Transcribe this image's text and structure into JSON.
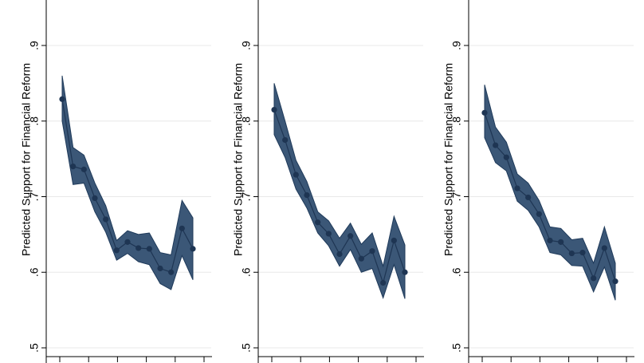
{
  "chart_data": [
    {
      "type": "line",
      "title": "",
      "xlabel": "",
      "ylabel": "Predicted Support for Financial Reform",
      "ylim": [
        0.5,
        0.96
      ],
      "yticks": [
        {
          "value": 0.5,
          "label": ".5"
        },
        {
          "value": 0.6,
          "label": ".6"
        },
        {
          "value": 0.7,
          "label": ".7"
        },
        {
          "value": 0.8,
          "label": ".8"
        },
        {
          "value": 0.9,
          "label": ".9"
        }
      ],
      "grid": true,
      "x": [
        1,
        2,
        3,
        4,
        5,
        6,
        7,
        8,
        9,
        10,
        11,
        12,
        13,
        14,
        15
      ],
      "series": [
        {
          "values": [
            0.829,
            0.74,
            0.736,
            0.698,
            0.67,
            0.629,
            0.64,
            0.632,
            0.631,
            0.605,
            0.6,
            0.658,
            0.631
          ],
          "upper": [
            0.86,
            0.765,
            0.755,
            0.718,
            0.688,
            0.642,
            0.655,
            0.65,
            0.652,
            0.626,
            0.623,
            0.695,
            0.672
          ],
          "lower": [
            0.8,
            0.716,
            0.718,
            0.68,
            0.653,
            0.616,
            0.625,
            0.614,
            0.61,
            0.585,
            0.577,
            0.622,
            0.59
          ],
          "x": [
            1,
            2,
            3,
            4,
            5,
            6,
            7,
            8,
            9,
            10,
            11,
            12,
            13
          ]
        }
      ],
      "colors": {
        "band": "#3b5777",
        "band_edge": "#1f3a5a",
        "line": "#1e3553",
        "marker": "#1e3553",
        "grid": "#e8e8e8"
      }
    },
    {
      "type": "line",
      "title": "",
      "xlabel": "",
      "ylabel": "Predicted Support for Financial Reform",
      "ylim": [
        0.5,
        0.96
      ],
      "yticks": [
        {
          "value": 0.5,
          "label": ".5"
        },
        {
          "value": 0.6,
          "label": ".6"
        },
        {
          "value": 0.7,
          "label": ".7"
        },
        {
          "value": 0.8,
          "label": ".8"
        },
        {
          "value": 0.9,
          "label": ".9"
        }
      ],
      "grid": true,
      "x": [
        1,
        2,
        3,
        4,
        5,
        6,
        7,
        8,
        9,
        10,
        11,
        12,
        13,
        14,
        15
      ],
      "series": [
        {
          "values": [
            0.815,
            0.775,
            0.729,
            0.702,
            0.666,
            0.651,
            0.624,
            0.648,
            0.618,
            0.628,
            0.586,
            0.642,
            0.6
          ],
          "upper": [
            0.85,
            0.8,
            0.748,
            0.72,
            0.68,
            0.668,
            0.645,
            0.665,
            0.637,
            0.652,
            0.608,
            0.674,
            0.636
          ],
          "lower": [
            0.782,
            0.752,
            0.71,
            0.685,
            0.652,
            0.635,
            0.608,
            0.63,
            0.6,
            0.605,
            0.566,
            0.61,
            0.565
          ],
          "x": [
            1,
            2,
            3,
            4,
            5,
            6,
            7,
            8,
            9,
            10,
            11,
            12,
            13
          ]
        }
      ],
      "colors": {
        "band": "#3b5777",
        "band_edge": "#1f3a5a",
        "line": "#1e3553",
        "marker": "#1e3553",
        "grid": "#e8e8e8"
      }
    },
    {
      "type": "line",
      "title": "",
      "xlabel": "",
      "ylabel": "Predicted Support for Financial Reform",
      "ylim": [
        0.5,
        0.96
      ],
      "yticks": [
        {
          "value": 0.5,
          "label": ".5"
        },
        {
          "value": 0.6,
          "label": ".6"
        },
        {
          "value": 0.7,
          "label": ".7"
        },
        {
          "value": 0.8,
          "label": ".8"
        },
        {
          "value": 0.9,
          "label": ".9"
        }
      ],
      "grid": true,
      "x": [
        1,
        2,
        3,
        4,
        5,
        6,
        7,
        8,
        9,
        10,
        11,
        12,
        13,
        14,
        15
      ],
      "series": [
        {
          "values": [
            0.811,
            0.768,
            0.752,
            0.711,
            0.699,
            0.677,
            0.642,
            0.64,
            0.625,
            0.626,
            0.592,
            0.632,
            0.588
          ],
          "upper": [
            0.848,
            0.792,
            0.772,
            0.73,
            0.718,
            0.695,
            0.66,
            0.658,
            0.643,
            0.645,
            0.612,
            0.66,
            0.612
          ],
          "lower": [
            0.778,
            0.745,
            0.734,
            0.694,
            0.682,
            0.66,
            0.626,
            0.623,
            0.609,
            0.608,
            0.574,
            0.607,
            0.563
          ],
          "x": [
            1,
            2,
            3,
            4,
            5,
            6,
            7,
            8,
            9,
            10,
            11,
            12,
            13
          ]
        }
      ],
      "colors": {
        "band": "#3b5777",
        "band_edge": "#1f3a5a",
        "line": "#1e3553",
        "marker": "#1e3553",
        "grid": "#e8e8e8"
      }
    }
  ]
}
